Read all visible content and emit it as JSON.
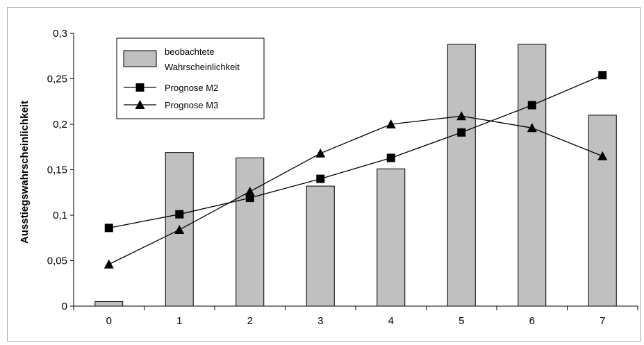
{
  "chart_data": {
    "type": "bar",
    "categories": [
      "0",
      "1",
      "2",
      "3",
      "4",
      "5",
      "6",
      "7"
    ],
    "ylabel": "Ausstiegswahrscheinlichkeit",
    "xlabel": "",
    "ylim": [
      0,
      0.3
    ],
    "yticks": [
      0,
      0.05,
      0.1,
      0.15,
      0.2,
      0.25,
      0.3
    ],
    "ytick_labels": [
      "0",
      "0,05",
      "0,1",
      "0,15",
      "0,2",
      "0,25",
      "0,3"
    ],
    "grid": false,
    "legend_position": "top-left",
    "series": [
      {
        "name": "beobachtete Wahrscheinlichkeit",
        "legend_lines": [
          "beobachtete",
          "Wahrscheinlichkeit"
        ],
        "type": "bar",
        "color": "#c0c0c0",
        "values": [
          0.005,
          0.169,
          0.163,
          0.132,
          0.151,
          0.288,
          0.288,
          0.21
        ]
      },
      {
        "name": "Prognose M2",
        "legend_lines": [
          "Prognose M2"
        ],
        "type": "line",
        "marker": "square",
        "color": "#000000",
        "values": [
          0.086,
          0.101,
          0.119,
          0.14,
          0.163,
          0.191,
          0.221,
          0.254
        ]
      },
      {
        "name": "Prognose M3",
        "legend_lines": [
          "Prognose M3"
        ],
        "type": "line",
        "marker": "triangle",
        "color": "#000000",
        "values": [
          0.046,
          0.084,
          0.126,
          0.168,
          0.2,
          0.209,
          0.196,
          0.165
        ]
      }
    ]
  }
}
